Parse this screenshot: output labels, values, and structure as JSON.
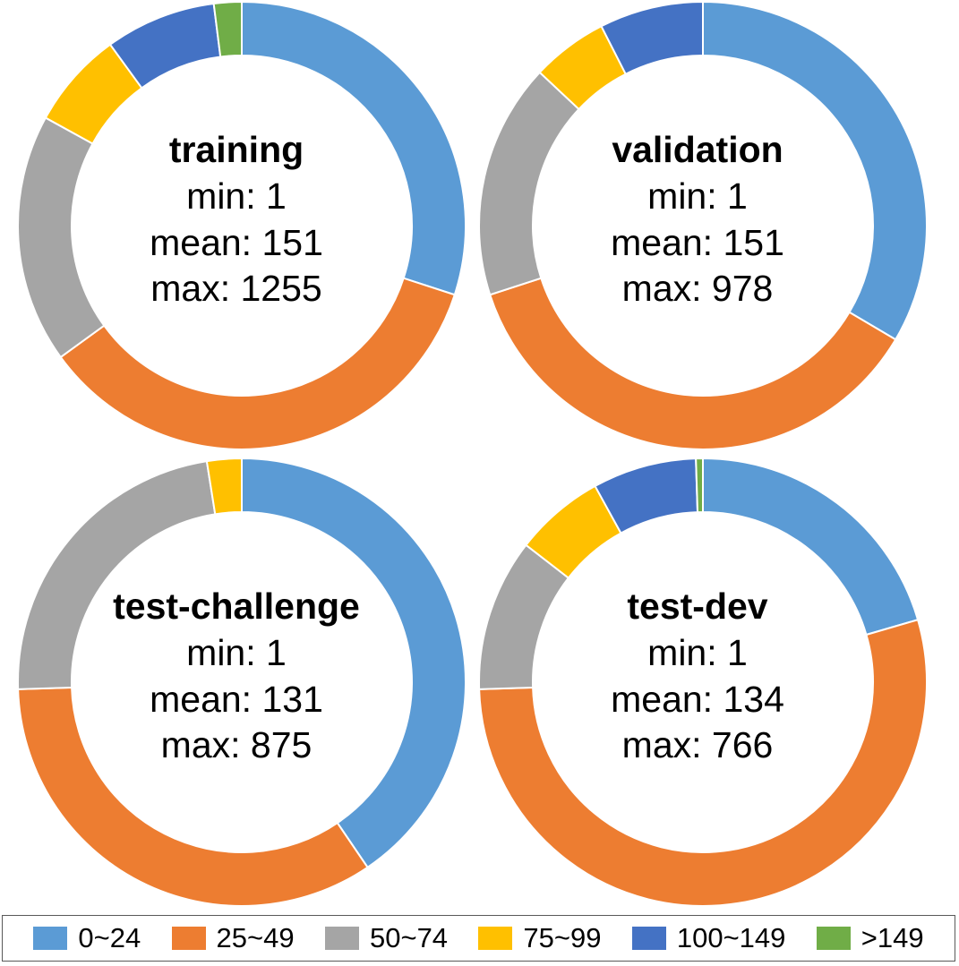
{
  "chart_data": [
    {
      "type": "pie",
      "title": "training",
      "stats": {
        "min": "min: 1",
        "mean": "mean: 151",
        "max": "max: 1255"
      },
      "categories": [
        "0~24",
        "25~49",
        "50~74",
        "75~99",
        "100~149",
        ">149"
      ],
      "values": [
        30,
        35,
        18,
        7,
        8,
        2
      ]
    },
    {
      "type": "pie",
      "title": "validation",
      "stats": {
        "min": "min: 1",
        "mean": "mean: 151",
        "max": "max: 978"
      },
      "categories": [
        "0~24",
        "25~49",
        "50~74",
        "75~99",
        "100~149",
        ">149"
      ],
      "values": [
        33.5,
        36.5,
        17,
        5.5,
        7.5,
        0
      ]
    },
    {
      "type": "pie",
      "title": "test-challenge",
      "stats": {
        "min": "min: 1",
        "mean": "mean: 131",
        "max": "max: 875"
      },
      "categories": [
        "0~24",
        "25~49",
        "50~74",
        "75~99",
        "100~149",
        ">149"
      ],
      "values": [
        40.5,
        34,
        23,
        2.5,
        0,
        0
      ]
    },
    {
      "type": "pie",
      "title": "test-dev",
      "stats": {
        "min": "min: 1",
        "mean": "mean: 134",
        "max": "max: 766"
      },
      "categories": [
        "0~24",
        "25~49",
        "50~74",
        "75~99",
        "100~149",
        ">149"
      ],
      "values": [
        20.5,
        54,
        11,
        6.5,
        7.5,
        0.5
      ]
    }
  ],
  "legend": [
    {
      "label": "0~24",
      "color": "#5b9bd5"
    },
    {
      "label": "25~49",
      "color": "#ed7d31"
    },
    {
      "label": "50~74",
      "color": "#a5a5a5"
    },
    {
      "label": "75~99",
      "color": "#ffc000"
    },
    {
      "label": "100~149",
      "color": "#4472c4"
    },
    {
      "label": ">149",
      "color": "#70ad47"
    }
  ]
}
